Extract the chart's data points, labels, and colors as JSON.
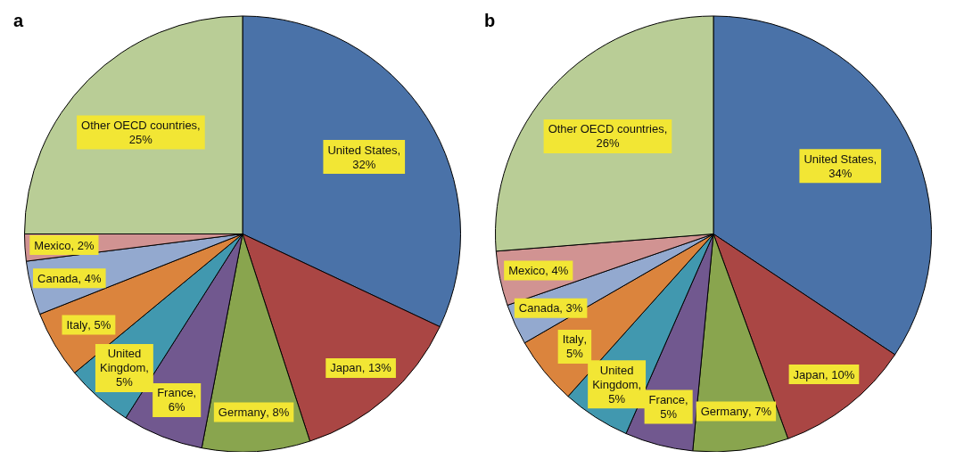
{
  "chart_data": [
    {
      "type": "pie",
      "title": "a",
      "categories": [
        "United States",
        "Japan",
        "Germany",
        "France",
        "United Kingdom",
        "Italy",
        "Canada",
        "Mexico",
        "Other OECD countries"
      ],
      "values": [
        32,
        13,
        8,
        6,
        5,
        5,
        4,
        2,
        25
      ],
      "value_labels": [
        ", 32%",
        ", 13%",
        ", 8%",
        ", 6%",
        ", 5%",
        ", 5%",
        ", 4%",
        ", 2%",
        ", 25%"
      ],
      "colors": [
        "#4a72a8",
        "#aa4644",
        "#89a54e",
        "#71588f",
        "#4198af",
        "#db843d",
        "#93a9cf",
        "#d19392",
        "#b9cd96"
      ],
      "legend": false
    },
    {
      "type": "pie",
      "title": "b",
      "categories": [
        "United States",
        "Japan",
        "Germany",
        "France",
        "United Kingdom",
        "Italy",
        "Canada",
        "Mexico",
        "Other OECD countries"
      ],
      "values": [
        34,
        10,
        7,
        5,
        5,
        5,
        3,
        4,
        26
      ],
      "value_labels": [
        ", 34%",
        ", 10%",
        ", 7%",
        ", 5%",
        ", 5%",
        ", 5%",
        ", 3%",
        ", 4%",
        ", 26%"
      ],
      "colors": [
        "#4a72a8",
        "#aa4644",
        "#89a54e",
        "#71588f",
        "#4198af",
        "#db843d",
        "#93a9cf",
        "#d19392",
        "#b9cd96"
      ],
      "legend": false
    }
  ]
}
